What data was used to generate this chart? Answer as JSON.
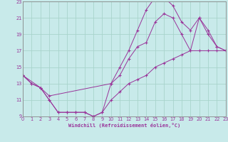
{
  "xlabel": "Windchill (Refroidissement éolien,°C)",
  "bg_color": "#c8eaea",
  "grid_color": "#a8d4cc",
  "line_color": "#993399",
  "xlim": [
    0,
    23
  ],
  "ylim": [
    9,
    23
  ],
  "xticks": [
    0,
    1,
    2,
    3,
    4,
    5,
    6,
    7,
    8,
    9,
    10,
    11,
    12,
    13,
    14,
    15,
    16,
    17,
    18,
    19,
    20,
    21,
    22,
    23
  ],
  "yticks": [
    9,
    11,
    13,
    15,
    17,
    19,
    21,
    23
  ],
  "curve1_x": [
    0,
    1,
    2,
    3,
    4,
    5,
    6,
    7,
    8,
    9,
    10,
    11,
    12,
    13,
    14,
    15,
    16,
    17,
    18,
    19,
    20,
    21,
    22,
    23
  ],
  "curve1_y": [
    14,
    13,
    12.5,
    11,
    9.5,
    9.5,
    9.5,
    9.5,
    9,
    9.5,
    11,
    12,
    13,
    13.5,
    14,
    15,
    15.5,
    16,
    16.5,
    17,
    17,
    17,
    17,
    17
  ],
  "curve2_x": [
    0,
    1,
    2,
    3,
    4,
    5,
    6,
    7,
    8,
    9,
    10,
    11,
    12,
    13,
    14,
    15,
    16,
    17,
    18,
    19,
    20,
    21,
    22,
    23
  ],
  "curve2_y": [
    14,
    13,
    12.5,
    11,
    9.5,
    9.5,
    9.5,
    9.5,
    9,
    9.5,
    13,
    15,
    17,
    19.5,
    22,
    23.5,
    23.5,
    22.5,
    20.5,
    19.5,
    21,
    19.5,
    17.5,
    17
  ],
  "curve3_x": [
    0,
    2,
    3,
    10,
    11,
    12,
    13,
    14,
    15,
    16,
    17,
    18,
    19,
    20,
    21,
    22,
    23
  ],
  "curve3_y": [
    14,
    12.5,
    11.5,
    13,
    14,
    16,
    17.5,
    18,
    20.5,
    21.5,
    21,
    19,
    17,
    21,
    19,
    17.5,
    17
  ]
}
